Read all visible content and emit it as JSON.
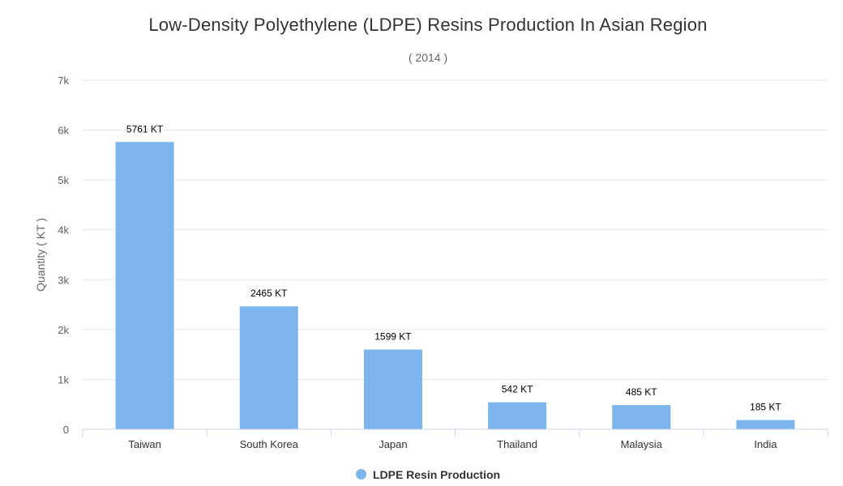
{
  "chart_data": {
    "type": "bar",
    "title": "Low-Density Polyethylene (LDPE) Resins Production In Asian Region",
    "subtitle": "( 2014 )",
    "xlabel": "",
    "ylabel": "Quantity ( KT )",
    "ylim": [
      0,
      7000
    ],
    "yticks": [
      "0",
      "1k",
      "2k",
      "3k",
      "4k",
      "5k",
      "6k",
      "7k"
    ],
    "categories": [
      "Taiwan",
      "South Korea",
      "Japan",
      "Thailand",
      "Malaysia",
      "India"
    ],
    "series": [
      {
        "name": "LDPE Resin Production",
        "values": [
          5761,
          2465,
          1599,
          542,
          485,
          185
        ],
        "data_labels": [
          "5761 KT",
          "2465 KT",
          "1599 KT",
          "542 KT",
          "485 KT",
          "185 KT"
        ],
        "color": "#7cb5ec"
      }
    ],
    "grid": true,
    "legend": "bottom-center"
  }
}
